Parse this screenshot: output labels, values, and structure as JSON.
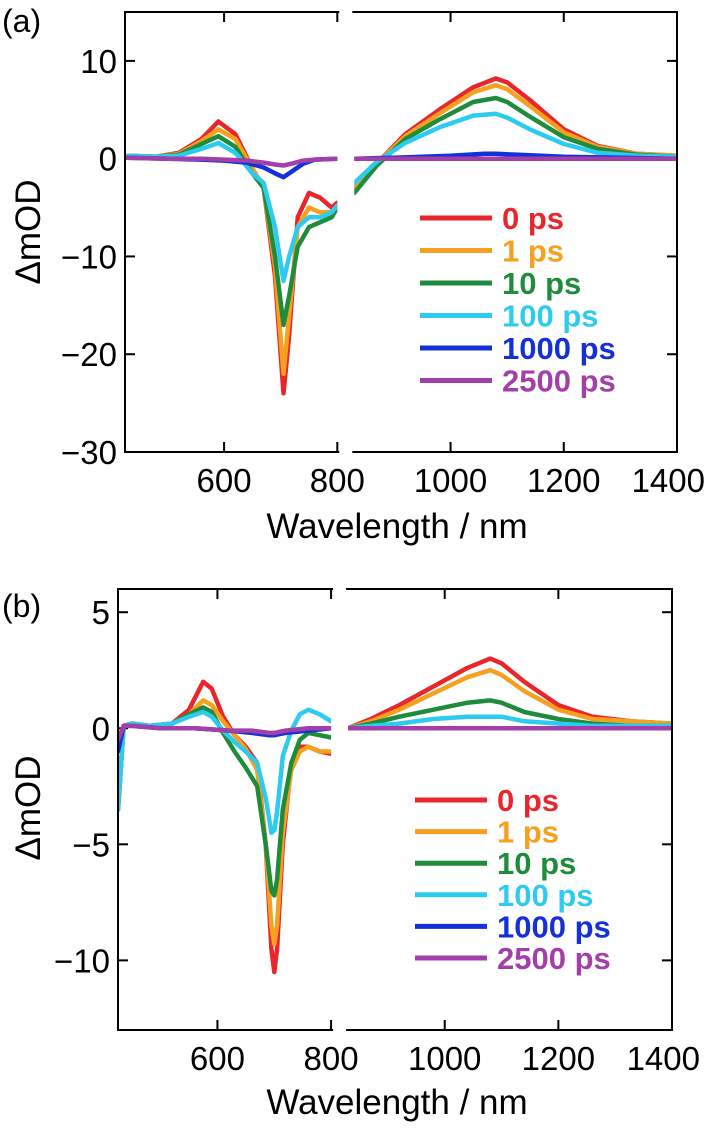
{
  "chart_data": [
    {
      "type": "line",
      "panel_label": "(a)",
      "xlabel": "Wavelength / nm",
      "ylabel": "ΔmOD",
      "xlim": [
        425,
        1400
      ],
      "ylim": [
        -30,
        15
      ],
      "xticks": [
        600,
        800,
        1000,
        1200,
        1400
      ],
      "yticks": [
        -30,
        -20,
        -10,
        0,
        10
      ],
      "xtick_labels": [
        "600",
        "800",
        "1000",
        "1200",
        "1400"
      ],
      "ytick_labels": [
        "−30",
        "−20",
        "−10",
        "0",
        "10"
      ],
      "gap": [
        800,
        830
      ],
      "series": [
        {
          "name": "0 ps",
          "color": "#e8262b",
          "x": [
            425,
            480,
            520,
            560,
            590,
            620,
            650,
            670,
            690,
            705,
            715,
            730,
            750,
            770,
            790,
            800,
            830,
            870,
            920,
            980,
            1040,
            1080,
            1100,
            1140,
            1200,
            1260,
            1330,
            1400
          ],
          "y": [
            0.3,
            0.2,
            0.6,
            2.0,
            3.8,
            2.5,
            -1.0,
            -3.0,
            -12.0,
            -24.0,
            -18.0,
            -6.0,
            -3.5,
            -4.0,
            -5.0,
            -4.5,
            -3.0,
            -0.5,
            2.5,
            5.0,
            7.3,
            8.2,
            7.8,
            6.0,
            3.0,
            1.3,
            0.5,
            0.3
          ]
        },
        {
          "name": "1 ps",
          "color": "#f5a01e",
          "x": [
            425,
            480,
            520,
            560,
            590,
            620,
            650,
            670,
            690,
            705,
            715,
            730,
            750,
            770,
            790,
            800,
            830,
            870,
            920,
            980,
            1040,
            1080,
            1100,
            1140,
            1200,
            1260,
            1330,
            1400
          ],
          "y": [
            0.3,
            0.2,
            0.5,
            1.8,
            3.0,
            2.0,
            -1.0,
            -3.0,
            -11.0,
            -22.0,
            -16.0,
            -7.0,
            -5.0,
            -5.5,
            -5.5,
            -4.8,
            -3.0,
            -0.5,
            2.3,
            4.6,
            6.8,
            7.5,
            7.1,
            5.4,
            2.7,
            1.2,
            0.5,
            0.3
          ]
        },
        {
          "name": "10 ps",
          "color": "#1f8c3b",
          "x": [
            425,
            480,
            520,
            560,
            590,
            620,
            650,
            670,
            690,
            705,
            715,
            730,
            750,
            770,
            790,
            800,
            830,
            870,
            920,
            980,
            1040,
            1080,
            1100,
            1140,
            1200,
            1260,
            1330,
            1400
          ],
          "y": [
            0.3,
            0.2,
            0.4,
            1.5,
            2.3,
            1.2,
            -1.5,
            -3.0,
            -10.0,
            -17.0,
            -14.0,
            -9.0,
            -7.0,
            -6.5,
            -6.0,
            -5.0,
            -3.5,
            -0.7,
            2.0,
            4.0,
            5.8,
            6.2,
            5.8,
            4.3,
            2.2,
            1.0,
            0.4,
            0.2
          ]
        },
        {
          "name": "100 ps",
          "color": "#2ecbf0",
          "x": [
            425,
            480,
            520,
            560,
            590,
            620,
            650,
            670,
            690,
            705,
            715,
            730,
            750,
            770,
            790,
            800,
            830,
            870,
            920,
            980,
            1040,
            1080,
            1100,
            1140,
            1200,
            1260,
            1330,
            1400
          ],
          "y": [
            0.3,
            0.2,
            0.3,
            1.0,
            1.6,
            0.6,
            -1.5,
            -2.5,
            -7.0,
            -12.5,
            -10.0,
            -7.0,
            -6.0,
            -6.0,
            -5.5,
            -4.8,
            -2.5,
            -0.3,
            1.6,
            3.2,
            4.4,
            4.6,
            4.2,
            3.0,
            1.5,
            0.6,
            0.3,
            0.2
          ]
        },
        {
          "name": "1000 ps",
          "color": "#1430d8",
          "x": [
            425,
            500,
            560,
            600,
            640,
            670,
            690,
            705,
            720,
            740,
            760,
            800,
            830,
            900,
            1000,
            1060,
            1080,
            1120,
            1200,
            1300,
            1400
          ],
          "y": [
            0.1,
            0.0,
            -0.1,
            -0.2,
            -0.4,
            -0.9,
            -1.5,
            -1.9,
            -1.3,
            -0.5,
            -0.1,
            0.0,
            0.0,
            0.1,
            0.3,
            0.5,
            0.5,
            0.4,
            0.2,
            0.1,
            0.0
          ]
        },
        {
          "name": "2500 ps",
          "color": "#a23fa8",
          "x": [
            425,
            500,
            560,
            600,
            640,
            670,
            690,
            705,
            720,
            740,
            760,
            800,
            830,
            900,
            1000,
            1100,
            1200,
            1300,
            1400
          ],
          "y": [
            0.1,
            0.0,
            0.0,
            -0.1,
            -0.2,
            -0.4,
            -0.6,
            -0.7,
            -0.5,
            -0.2,
            -0.1,
            0.0,
            0.0,
            0.0,
            0.0,
            0.0,
            0.0,
            0.0,
            0.0
          ]
        }
      ]
    },
    {
      "type": "line",
      "panel_label": "(b)",
      "xlabel": "Wavelength / nm",
      "ylabel": "ΔmOD",
      "xlim": [
        425,
        1400
      ],
      "ylim": [
        -13,
        6
      ],
      "xticks": [
        600,
        800,
        1000,
        1200,
        1400
      ],
      "yticks": [
        -10,
        -5,
        0,
        5
      ],
      "xtick_labels": [
        "600",
        "800",
        "1000",
        "1200",
        "1400"
      ],
      "ytick_labels": [
        "−10",
        "−5",
        "0",
        "5"
      ],
      "gap": [
        800,
        830
      ],
      "series": [
        {
          "name": "0 ps",
          "color": "#e8262b",
          "x": [
            425,
            435,
            450,
            480,
            520,
            550,
            575,
            590,
            610,
            630,
            650,
            670,
            685,
            695,
            700,
            705,
            715,
            730,
            745,
            760,
            780,
            800,
            830,
            870,
            920,
            980,
            1040,
            1080,
            1100,
            1140,
            1200,
            1260,
            1330,
            1400
          ],
          "y": [
            -3.5,
            0.1,
            0.2,
            0.1,
            0.2,
            0.8,
            2.0,
            1.7,
            0.5,
            -0.3,
            -0.8,
            -1.5,
            -5.0,
            -9.5,
            -10.5,
            -9.5,
            -5.0,
            -1.5,
            -0.8,
            -0.8,
            -1.0,
            -1.1,
            0.0,
            0.4,
            1.0,
            1.8,
            2.6,
            3.0,
            2.8,
            2.0,
            1.0,
            0.5,
            0.3,
            0.2
          ]
        },
        {
          "name": "1 ps",
          "color": "#f5a01e",
          "x": [
            425,
            435,
            450,
            480,
            520,
            550,
            575,
            590,
            610,
            630,
            650,
            670,
            685,
            695,
            700,
            705,
            715,
            730,
            745,
            760,
            780,
            800,
            830,
            870,
            920,
            980,
            1040,
            1080,
            1100,
            1140,
            1200,
            1260,
            1330,
            1400
          ],
          "y": [
            -3.5,
            0.1,
            0.2,
            0.1,
            0.2,
            0.6,
            1.2,
            1.0,
            0.3,
            -0.3,
            -0.9,
            -1.8,
            -5.0,
            -8.5,
            -9.3,
            -8.5,
            -4.5,
            -1.8,
            -1.0,
            -0.8,
            -1.0,
            -1.0,
            0.0,
            0.3,
            0.8,
            1.5,
            2.2,
            2.5,
            2.3,
            1.6,
            0.8,
            0.4,
            0.3,
            0.2
          ]
        },
        {
          "name": "10 ps",
          "color": "#1f8c3b",
          "x": [
            425,
            435,
            450,
            480,
            520,
            550,
            575,
            590,
            610,
            630,
            650,
            670,
            685,
            695,
            700,
            705,
            715,
            730,
            745,
            760,
            780,
            800,
            830,
            870,
            920,
            980,
            1040,
            1080,
            1100,
            1140,
            1200,
            1260,
            1330,
            1400
          ],
          "y": [
            -3.5,
            0.1,
            0.2,
            0.1,
            0.2,
            0.6,
            0.9,
            0.7,
            -0.2,
            -1.0,
            -1.7,
            -2.5,
            -5.0,
            -7.0,
            -7.2,
            -6.5,
            -3.5,
            -1.5,
            -0.5,
            -0.2,
            -0.3,
            -0.4,
            0.0,
            0.2,
            0.5,
            0.8,
            1.1,
            1.2,
            1.1,
            0.7,
            0.4,
            0.2,
            0.1,
            0.1
          ]
        },
        {
          "name": "100 ps",
          "color": "#2ecbf0",
          "x": [
            425,
            435,
            450,
            480,
            520,
            550,
            575,
            590,
            610,
            630,
            650,
            670,
            685,
            695,
            700,
            705,
            715,
            730,
            745,
            760,
            780,
            800,
            830,
            870,
            920,
            980,
            1040,
            1080,
            1100,
            1140,
            1200,
            1260,
            1330,
            1400
          ],
          "y": [
            -3.5,
            0.1,
            0.2,
            0.1,
            0.2,
            0.5,
            0.7,
            0.5,
            -0.1,
            -0.6,
            -1.0,
            -1.5,
            -3.0,
            -4.5,
            -4.4,
            -3.6,
            -1.2,
            -0.1,
            0.6,
            0.8,
            0.6,
            0.3,
            0.0,
            0.1,
            0.2,
            0.4,
            0.5,
            0.5,
            0.5,
            0.3,
            0.2,
            0.1,
            0.1,
            0.1
          ]
        },
        {
          "name": "1000 ps",
          "color": "#1430d8",
          "x": [
            425,
            435,
            450,
            500,
            560,
            620,
            660,
            690,
            700,
            720,
            760,
            800,
            830,
            900,
            1000,
            1100,
            1200,
            1300,
            1400
          ],
          "y": [
            -1.0,
            0.1,
            0.1,
            0.0,
            0.0,
            -0.1,
            -0.2,
            -0.3,
            -0.3,
            -0.2,
            -0.1,
            0.0,
            0.0,
            0.0,
            0.0,
            0.0,
            0.0,
            0.0,
            0.0
          ]
        },
        {
          "name": "2500 ps",
          "color": "#a23fa8",
          "x": [
            425,
            435,
            450,
            500,
            560,
            620,
            660,
            690,
            700,
            720,
            760,
            800,
            830,
            900,
            1000,
            1100,
            1200,
            1300,
            1400
          ],
          "y": [
            -0.5,
            0.1,
            0.1,
            0.0,
            0.0,
            -0.1,
            -0.1,
            -0.2,
            -0.2,
            -0.1,
            0.0,
            0.0,
            0.0,
            0.0,
            0.0,
            0.0,
            0.0,
            0.0,
            0.0
          ]
        }
      ]
    }
  ]
}
